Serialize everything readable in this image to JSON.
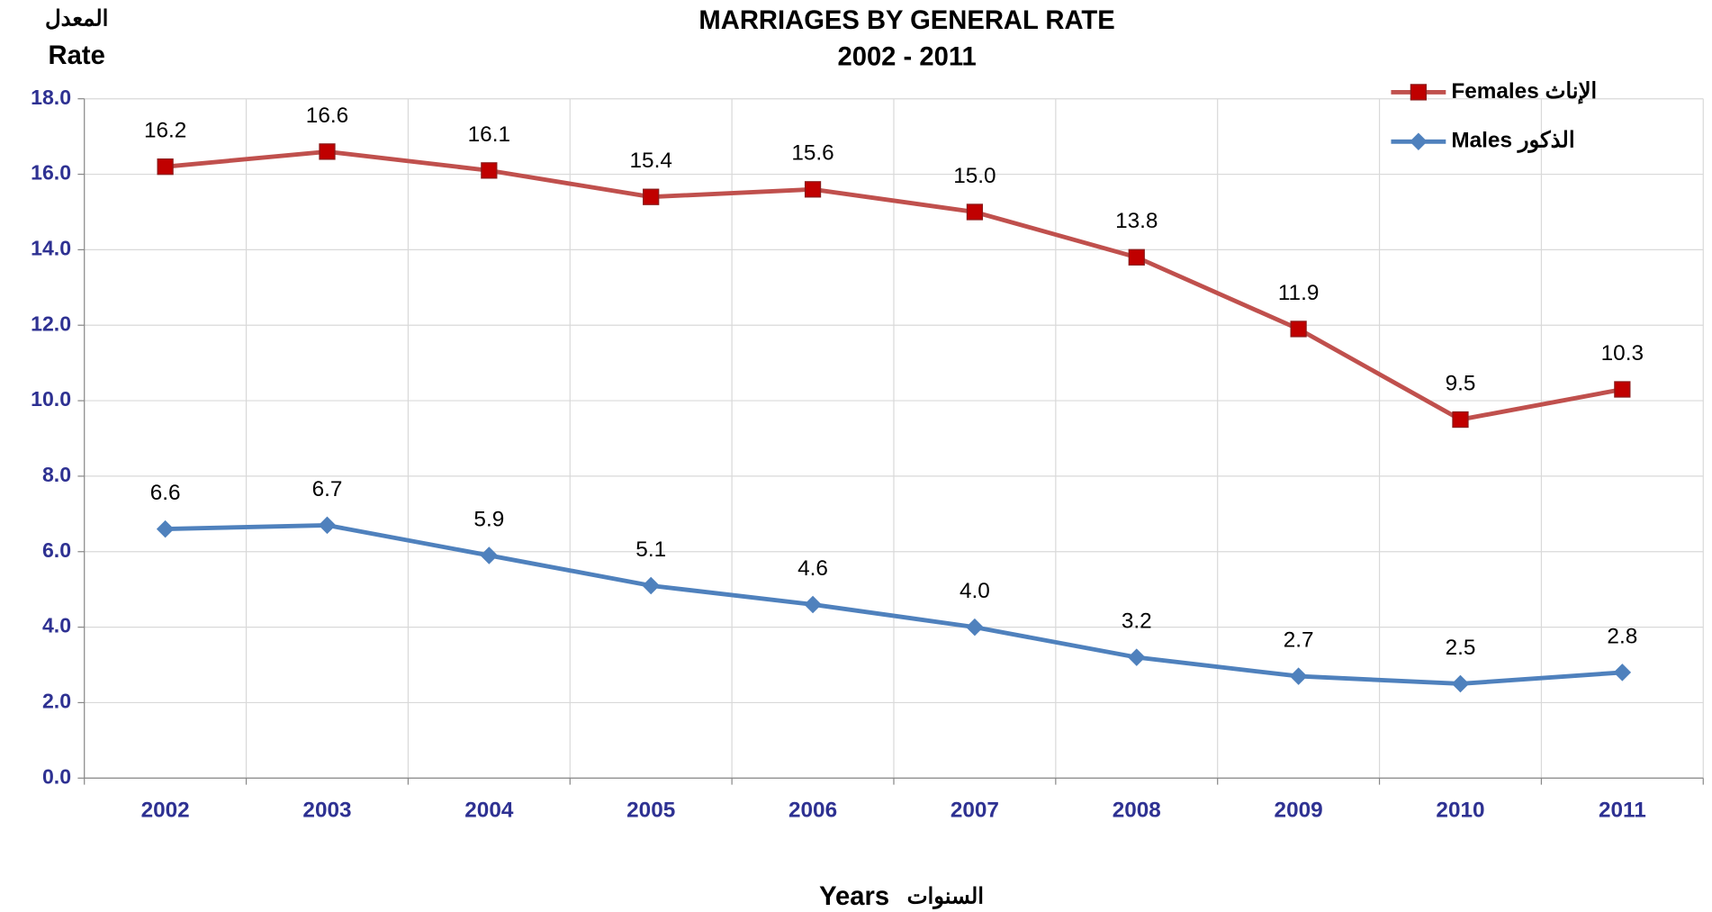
{
  "chart_data": {
    "type": "line",
    "title": "MARRIAGES BY GENERAL RATE",
    "subtitle": "2002 - 2011",
    "y_label_ar": "المعدل",
    "y_label": "Rate",
    "x_label": "Years",
    "x_label_ar": "السنوات",
    "categories": [
      "2002",
      "2003",
      "2004",
      "2005",
      "2006",
      "2007",
      "2008",
      "2009",
      "2010",
      "2011"
    ],
    "series": [
      {
        "name": "Females الإناث",
        "color": "#c0504d",
        "marker_color": "#c00000",
        "marker": "square",
        "values": [
          16.2,
          16.6,
          16.1,
          15.4,
          15.6,
          15.0,
          13.8,
          11.9,
          9.5,
          10.3
        ],
        "value_labels": [
          "16.2",
          "16.6",
          "16.1",
          "15.4",
          "15.6",
          "15.0",
          "13.8",
          "11.9",
          "9.5",
          "10.3"
        ]
      },
      {
        "name": "Males الذكور",
        "color": "#4f81bd",
        "marker_color": "#4f81bd",
        "marker": "diamond",
        "values": [
          6.6,
          6.7,
          5.9,
          5.1,
          4.6,
          4.0,
          3.2,
          2.7,
          2.5,
          2.8
        ],
        "value_labels": [
          "6.6",
          "6.7",
          "5.9",
          "5.1",
          "4.6",
          "4.0",
          "3.2",
          "2.7",
          "2.5",
          "2.8"
        ]
      }
    ],
    "ylim": [
      0,
      18
    ],
    "yticks": [
      {
        "value": 0,
        "label": "0.0"
      },
      {
        "value": 2,
        "label": "2.0"
      },
      {
        "value": 4,
        "label": "4.0"
      },
      {
        "value": 6,
        "label": "6.0"
      },
      {
        "value": 8,
        "label": "8.0"
      },
      {
        "value": 10,
        "label": "10.0"
      },
      {
        "value": 12,
        "label": "12.0"
      },
      {
        "value": 14,
        "label": "14.0"
      },
      {
        "value": 16,
        "label": "16.0"
      },
      {
        "value": 18,
        "label": "18.0"
      }
    ],
    "grid": true,
    "legend": "top-right"
  }
}
